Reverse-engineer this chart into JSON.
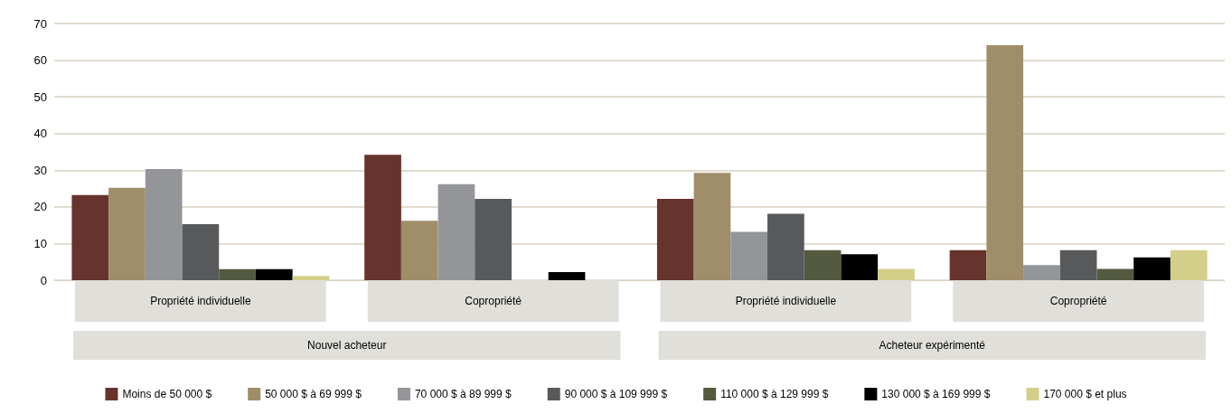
{
  "chart_data": {
    "type": "bar",
    "categories": [
      "Propriété individuelle",
      "Copropriété",
      "Propriété individuelle",
      "Copropriété"
    ],
    "annotations": [
      "Nouvel acheteur",
      "Acheteur expérimenté"
    ],
    "series": [
      {
        "name": "Moins de 50 000 $",
        "color": "#66342c",
        "values": [
          23.2,
          34.2,
          22.2,
          8.2
        ]
      },
      {
        "name": "50 000 $ à 69 999 $",
        "color": "#a08e6b",
        "values": [
          25.2,
          16.2,
          29.3,
          64.1
        ]
      },
      {
        "name": "70 000 $ à 89 999 $",
        "color": "#939598",
        "values": [
          30.3,
          26.2,
          13.2,
          4.1
        ]
      },
      {
        "name": "90 000 $ à 109 999 $",
        "color": "#58595b",
        "values": [
          15.3,
          22.2,
          18.1,
          8.2
        ]
      },
      {
        "name": "110 000 $ à 129 999 $",
        "color": "#545a40",
        "values": [
          3.0,
          null,
          8.2,
          3.1
        ]
      },
      {
        "name": "130 000 $ à 169 999 $",
        "color": "#000000",
        "values": [
          3.0,
          2.2,
          7.1,
          6.2
        ]
      },
      {
        "name": "170 000 $ et plus",
        "color": "#d3cf8a",
        "values": [
          1.2,
          null,
          3.1,
          8.2
        ]
      }
    ],
    "ylim": [
      0,
      70
    ],
    "yticks": [
      0,
      10,
      20,
      30,
      40,
      50,
      60,
      70
    ],
    "grid": "y",
    "legend": "bottom"
  }
}
